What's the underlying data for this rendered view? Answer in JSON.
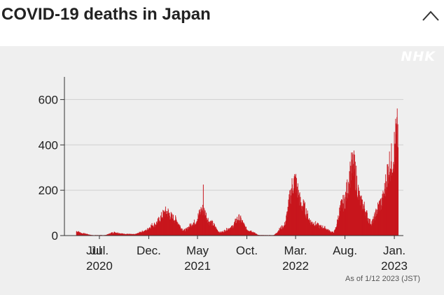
{
  "header": {
    "title": "COVID-19 deaths in Japan",
    "collapse_icon": "chevron-up-icon"
  },
  "logo": {
    "text": "NHK"
  },
  "note": "As of 1/12 2023 (JST)",
  "colors": {
    "bar": "#c8161d",
    "panel": "#efefef",
    "grid": "#cfcfcf"
  },
  "chart_data": {
    "type": "bar",
    "title": "COVID-19 deaths in Japan",
    "xlabel": "",
    "ylabel": "",
    "ylim": [
      0,
      700
    ],
    "yticks": [
      0,
      200,
      400,
      600
    ],
    "grid": true,
    "xticks": [
      {
        "label": "Jul.",
        "year": "2020",
        "date": "2020-07-01"
      },
      {
        "label": "Dec.",
        "year": "",
        "date": "2020-12-01"
      },
      {
        "label": "May",
        "year": "2021",
        "date": "2021-05-01"
      },
      {
        "label": "Oct.",
        "year": "",
        "date": "2021-10-01"
      },
      {
        "label": "Mar.",
        "year": "2022",
        "date": "2022-03-01"
      },
      {
        "label": "Aug.",
        "year": "",
        "date": "2022-08-01"
      },
      {
        "label": "Jan.",
        "year": "2023",
        "date": "2023-01-01"
      }
    ],
    "extra_label": "Jul",
    "series": [
      {
        "values_approx_weekly": [
          {
            "date": "2020-04-20",
            "value": 20
          },
          {
            "date": "2020-05-10",
            "value": 10
          },
          {
            "date": "2020-06-10",
            "value": 2
          },
          {
            "date": "2020-07-15",
            "value": 2
          },
          {
            "date": "2020-08-15",
            "value": 15
          },
          {
            "date": "2020-09-15",
            "value": 8
          },
          {
            "date": "2020-10-15",
            "value": 6
          },
          {
            "date": "2020-11-15",
            "value": 20
          },
          {
            "date": "2020-12-15",
            "value": 50
          },
          {
            "date": "2021-01-25",
            "value": 110
          },
          {
            "date": "2021-02-15",
            "value": 80
          },
          {
            "date": "2021-03-20",
            "value": 25
          },
          {
            "date": "2021-04-20",
            "value": 60
          },
          {
            "date": "2021-05-15",
            "value": 120
          },
          {
            "date": "2021-06-10",
            "value": 60
          },
          {
            "date": "2021-07-10",
            "value": 15
          },
          {
            "date": "2021-08-10",
            "value": 35
          },
          {
            "date": "2021-09-05",
            "value": 80
          },
          {
            "date": "2021-10-05",
            "value": 25
          },
          {
            "date": "2021-11-10",
            "value": 2
          },
          {
            "date": "2021-12-20",
            "value": 2
          },
          {
            "date": "2022-01-20",
            "value": 40
          },
          {
            "date": "2022-02-25",
            "value": 250
          },
          {
            "date": "2022-03-20",
            "value": 140
          },
          {
            "date": "2022-04-20",
            "value": 60
          },
          {
            "date": "2022-05-20",
            "value": 40
          },
          {
            "date": "2022-06-25",
            "value": 15
          },
          {
            "date": "2022-07-25",
            "value": 150
          },
          {
            "date": "2022-08-25",
            "value": 320
          },
          {
            "date": "2022-09-20",
            "value": 150
          },
          {
            "date": "2022-10-20",
            "value": 60
          },
          {
            "date": "2022-11-20",
            "value": 150
          },
          {
            "date": "2022-12-20",
            "value": 340
          },
          {
            "date": "2023-01-12",
            "value": 480
          }
        ],
        "spike": {
          "date": "2021-05-18",
          "value": 225
        }
      }
    ]
  }
}
